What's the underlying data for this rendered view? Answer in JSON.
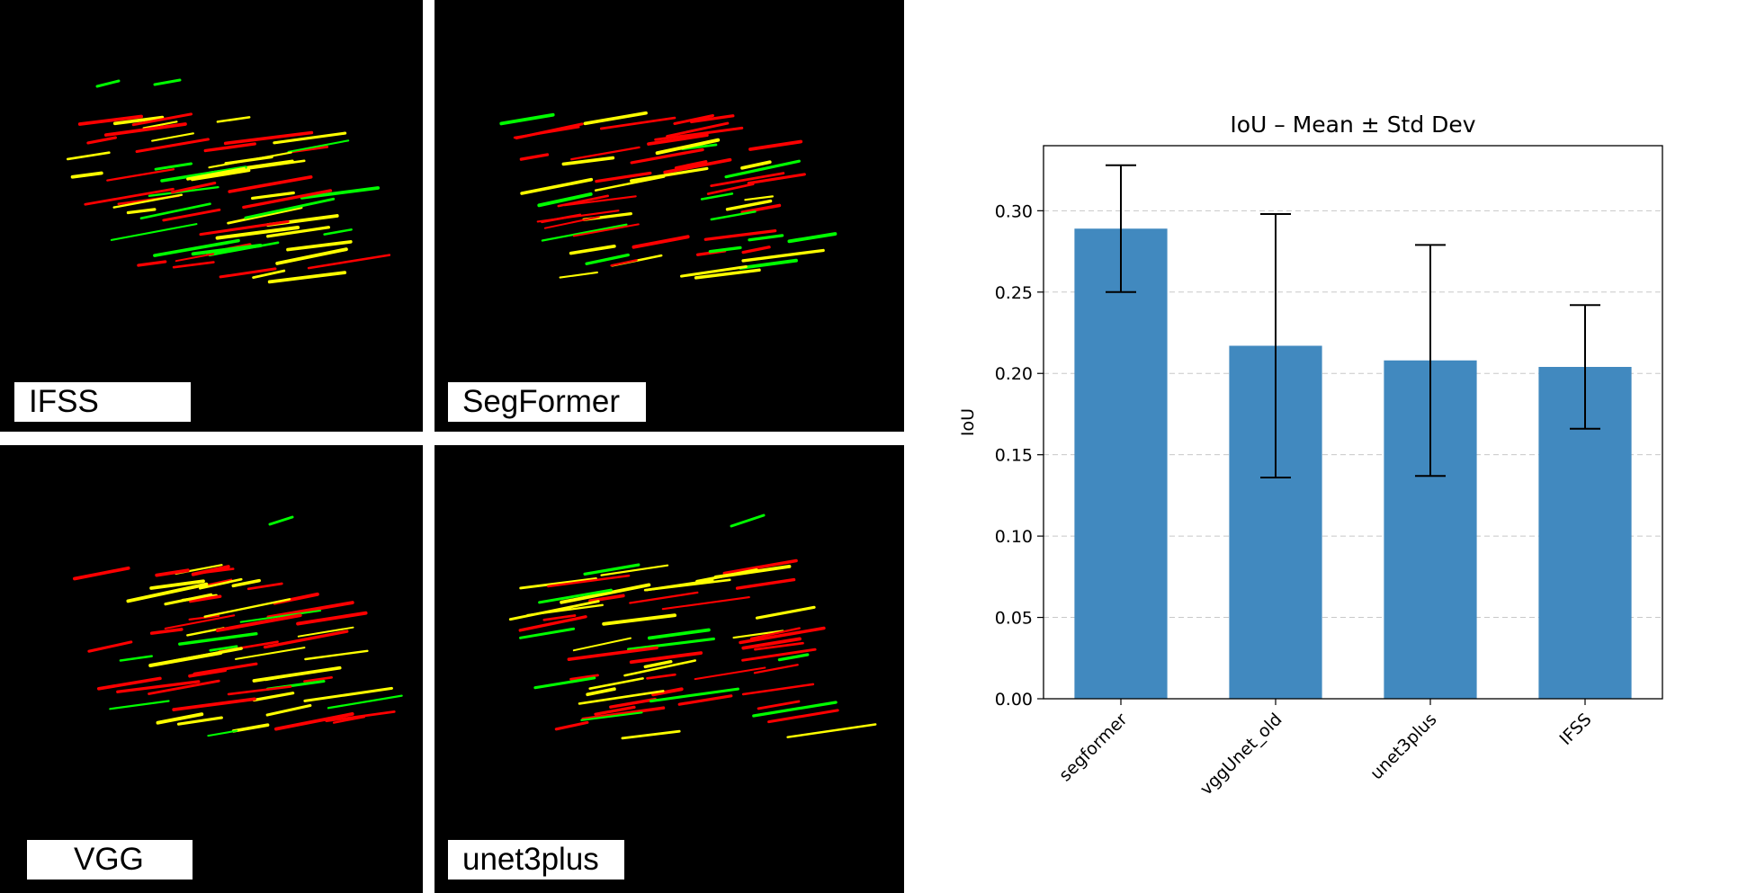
{
  "panels": [
    {
      "id": "ifss",
      "label": "IFSS"
    },
    {
      "id": "segformer",
      "label": "SegFormer"
    },
    {
      "id": "vgg",
      "label": "VGG"
    },
    {
      "id": "unet3plus",
      "label": "unet3plus"
    }
  ],
  "colors": {
    "panel_background": "#000000",
    "ground_truth": "#ff0000",
    "prediction": "#00ff00",
    "overlap": "#ffff00",
    "bar": "#4189bf",
    "error_bar": "#000000"
  },
  "chart_data": {
    "type": "bar",
    "title": "IoU – Mean ± Std Dev",
    "xlabel": "",
    "ylabel": "IoU",
    "categories": [
      "segformer",
      "vggUnet_old",
      "unet3plus",
      "IFSS"
    ],
    "values": [
      0.289,
      0.217,
      0.208,
      0.204
    ],
    "error": [
      0.039,
      0.081,
      0.071,
      0.038
    ],
    "ylim": [
      0,
      0.34
    ],
    "yticks": [
      0.0,
      0.05,
      0.1,
      0.15,
      0.2,
      0.25,
      0.3
    ],
    "ytick_labels": [
      "0.00",
      "0.05",
      "0.10",
      "0.15",
      "0.20",
      "0.25",
      "0.30"
    ],
    "grid": "y-dashed",
    "legend": "none"
  }
}
